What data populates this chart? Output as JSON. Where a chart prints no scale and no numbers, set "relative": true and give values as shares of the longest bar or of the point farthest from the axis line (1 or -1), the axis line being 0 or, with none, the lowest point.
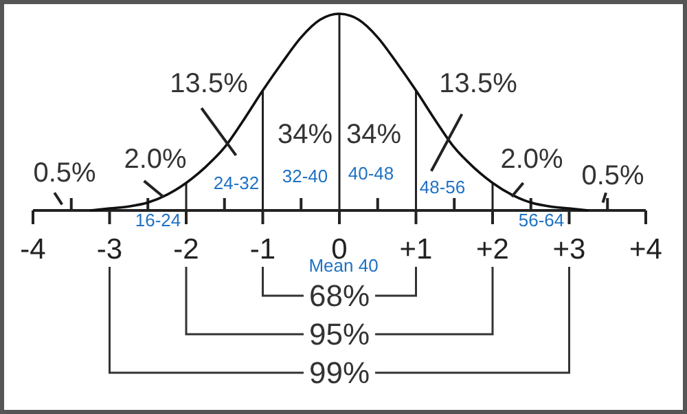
{
  "chart_data": {
    "type": "line",
    "relative": true,
    "tick_labels": "x",
    "marker": "none",
    "line_style": "solid",
    "xlim": [
      -4,
      4
    ],
    "xticks": [
      -4,
      {
        "value": -3.5,
        "label": null
      },
      -3,
      {
        "value": -2.5,
        "label": null
      },
      -2,
      {
        "value": -1.5,
        "label": null
      },
      -1,
      {
        "value": -0.5,
        "label": null
      },
      0,
      {
        "value": 0.5,
        "label": null
      },
      {
        "value": 1,
        "label": "+1"
      },
      {
        "value": 1.5,
        "label": null
      },
      {
        "value": 2,
        "label": "+2"
      },
      {
        "value": 2.5,
        "label": null
      },
      {
        "value": 3,
        "label": "+3"
      },
      {
        "value": 3.5,
        "label": null
      },
      {
        "value": 4,
        "label": "+4"
      }
    ],
    "x": [
      -3.25,
      -3,
      -2.75,
      -2.5,
      -2.25,
      -2,
      -1.75,
      -1.5,
      -1.25,
      -1,
      -0.75,
      -0.5,
      -0.25,
      0,
      0.25,
      0.5,
      0.75,
      1,
      1.25,
      1.5,
      1.75,
      2,
      2.25,
      2.5,
      2.75,
      3,
      3.25
    ],
    "series": [
      {
        "color": "#111111",
        "values": [
          0,
          0.01,
          0.02,
          0.04,
          0.08,
          0.14,
          0.22,
          0.32,
          0.46,
          0.61,
          0.75,
          0.88,
          0.97,
          1,
          0.97,
          0.88,
          0.75,
          0.61,
          0.46,
          0.32,
          0.22,
          0.14,
          0.08,
          0.04,
          0.02,
          0.01,
          0
        ]
      }
    ],
    "ref_lines": [
      {
        "axis": "x",
        "value": -2
      },
      {
        "axis": "x",
        "value": -1
      },
      {
        "axis": "x",
        "value": 0
      },
      {
        "axis": "x",
        "value": 1
      },
      {
        "axis": "x",
        "value": 2
      }
    ],
    "annotations": [
      "0.5%",
      "2.0%",
      "13.5%",
      "34%",
      "34%",
      "13.5%",
      "2.0%",
      "0.5%",
      "16-24",
      "24-32",
      "32-40",
      "40-48",
      "48-56",
      "56-64",
      "Mean 40",
      "68%",
      "95%",
      "99%"
    ]
  }
}
